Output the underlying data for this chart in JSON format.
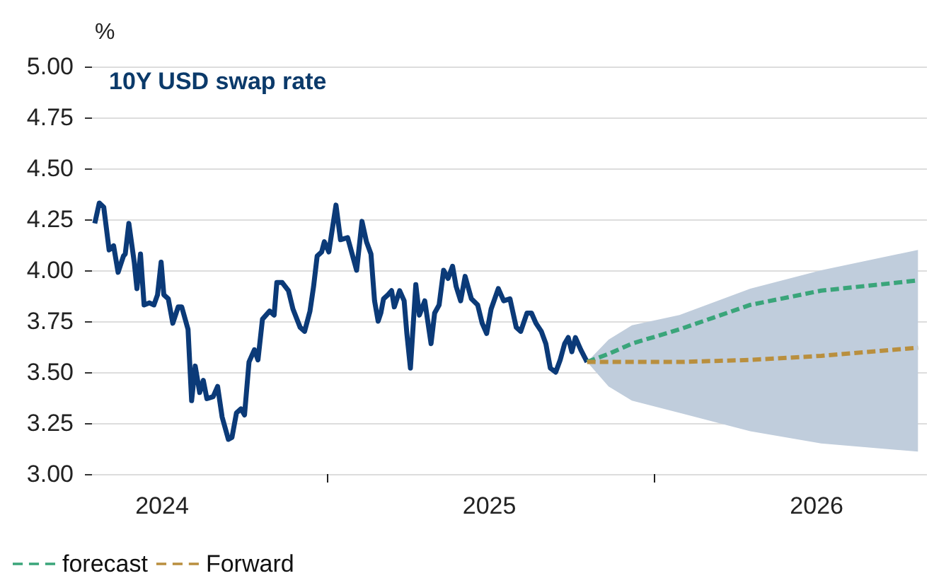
{
  "chart_data": {
    "type": "line",
    "title": "10Y USD swap rate",
    "ylabel": "%",
    "ylim": [
      3,
      5
    ],
    "yticks": [
      {
        "value": 3,
        "label": "3.00"
      },
      {
        "value": 3.25,
        "label": "3.25"
      },
      {
        "value": 3.5,
        "label": "3.50"
      },
      {
        "value": 3.75,
        "label": "3.75"
      },
      {
        "value": 4,
        "label": "4.00"
      },
      {
        "value": 4.25,
        "label": "4.25"
      },
      {
        "value": 4.5,
        "label": "4.50"
      },
      {
        "value": 4.75,
        "label": "4.75"
      },
      {
        "value": 5,
        "label": "5.00"
      }
    ],
    "xlim": [
      "2024-04-06",
      "2026-11-01"
    ],
    "xticks": [
      {
        "value": "2024-07-01",
        "label": "2024"
      },
      {
        "value": "2025-01-01",
        "label": null
      },
      {
        "value": "2025-07-01",
        "label": "2025"
      },
      {
        "value": "2026-01-01",
        "label": null
      },
      {
        "value": "2026-07-01",
        "label": "2026"
      }
    ],
    "grid": "y",
    "legend": "bottom left",
    "marker": "none",
    "series": [
      {
        "color": "#0b3a78",
        "line_style": "solid",
        "x": [
          "2024-04-17",
          "2024-04-22",
          "2024-04-27",
          "2024-05-03",
          "2024-05-08",
          "2024-05-13",
          "2024-05-19",
          "2024-05-21",
          "2024-05-25",
          "2024-05-31",
          "2024-06-03",
          "2024-06-07",
          "2024-06-11",
          "2024-06-17",
          "2024-06-22",
          "2024-06-26",
          "2024-06-30",
          "2024-07-03",
          "2024-07-08",
          "2024-07-13",
          "2024-07-19",
          "2024-07-23",
          "2024-07-30",
          "2024-08-03",
          "2024-08-07",
          "2024-08-12",
          "2024-08-16",
          "2024-08-20",
          "2024-08-27",
          "2024-09-01",
          "2024-09-06",
          "2024-09-13",
          "2024-09-17",
          "2024-09-22",
          "2024-09-27",
          "2024-10-01",
          "2024-10-06",
          "2024-10-12",
          "2024-10-16",
          "2024-10-21",
          "2024-10-29",
          "2024-11-03",
          "2024-11-06",
          "2024-11-12",
          "2024-11-19",
          "2024-11-24",
          "2024-12-02",
          "2024-12-07",
          "2024-12-13",
          "2024-12-17",
          "2024-12-21",
          "2024-12-26",
          "2024-12-29",
          "2025-01-03",
          "2025-01-11",
          "2025-01-16",
          "2025-01-24",
          "2025-01-29",
          "2025-02-03",
          "2025-02-09",
          "2025-02-14",
          "2025-02-19",
          "2025-02-23",
          "2025-02-27",
          "2025-03-02",
          "2025-03-05",
          "2025-03-10",
          "2025-03-14",
          "2025-03-17",
          "2025-03-23",
          "2025-03-28",
          "2025-03-31",
          "2025-04-04",
          "2025-04-10",
          "2025-04-14",
          "2025-04-20",
          "2025-04-23",
          "2025-04-27",
          "2025-05-01",
          "2025-05-06",
          "2025-05-11",
          "2025-05-16",
          "2025-05-21",
          "2025-05-25",
          "2025-05-30",
          "2025-06-04",
          "2025-06-11",
          "2025-06-18",
          "2025-06-23",
          "2025-06-28",
          "2025-07-03",
          "2025-07-11",
          "2025-07-17",
          "2025-07-24",
          "2025-07-31",
          "2025-08-05",
          "2025-08-12",
          "2025-08-17",
          "2025-08-22",
          "2025-08-28",
          "2025-09-02",
          "2025-09-07",
          "2025-09-13",
          "2025-09-18",
          "2025-09-23",
          "2025-09-27",
          "2025-10-01",
          "2025-10-05",
          "2025-10-11",
          "2025-10-18"
        ],
        "values": [
          4.23,
          4.33,
          4.31,
          4.1,
          4.12,
          3.99,
          4.07,
          4.08,
          4.23,
          4.04,
          3.91,
          4.08,
          3.83,
          3.84,
          3.83,
          3.88,
          4.04,
          3.88,
          3.86,
          3.74,
          3.82,
          3.82,
          3.71,
          3.36,
          3.53,
          3.4,
          3.46,
          3.37,
          3.38,
          3.43,
          3.28,
          3.17,
          3.18,
          3.3,
          3.32,
          3.29,
          3.55,
          3.61,
          3.56,
          3.76,
          3.8,
          3.78,
          3.94,
          3.94,
          3.9,
          3.81,
          3.72,
          3.7,
          3.8,
          3.92,
          4.07,
          4.09,
          4.14,
          4.09,
          4.32,
          4.15,
          4.16,
          4.08,
          4.0,
          4.24,
          4.14,
          4.08,
          3.85,
          3.75,
          3.79,
          3.86,
          3.88,
          3.9,
          3.82,
          3.9,
          3.85,
          3.69,
          3.52,
          3.93,
          3.78,
          3.85,
          3.76,
          3.64,
          3.79,
          3.83,
          4.0,
          3.96,
          4.02,
          3.92,
          3.85,
          3.97,
          3.86,
          3.83,
          3.74,
          3.69,
          3.81,
          3.91,
          3.85,
          3.86,
          3.72,
          3.7,
          3.79,
          3.79,
          3.74,
          3.7,
          3.64,
          3.52,
          3.5,
          3.56,
          3.64,
          3.67,
          3.6,
          3.67,
          3.61,
          3.55
        ]
      },
      {
        "name": "forecast",
        "color": "#3aa57a",
        "line_style": "dashed",
        "x": [
          "2025-10-18",
          "2025-11-11",
          "2025-12-07",
          "2026-01-29",
          "2026-04-18",
          "2026-07-06",
          "2026-10-22"
        ],
        "values": [
          3.55,
          3.59,
          3.64,
          3.71,
          3.83,
          3.9,
          3.95
        ],
        "lower": [
          3.55,
          3.43,
          3.36,
          3.3,
          3.21,
          3.15,
          3.11
        ],
        "upper": [
          3.55,
          3.66,
          3.73,
          3.78,
          3.91,
          4.0,
          4.1
        ]
      },
      {
        "name": "Forward",
        "color": "#b98f3e",
        "line_style": "dashed",
        "x": [
          "2025-10-18",
          "2025-11-11",
          "2025-12-07",
          "2026-01-29",
          "2026-04-18",
          "2026-07-06",
          "2026-10-22"
        ],
        "values": [
          3.55,
          3.55,
          3.55,
          3.55,
          3.56,
          3.58,
          3.62
        ]
      }
    ]
  }
}
